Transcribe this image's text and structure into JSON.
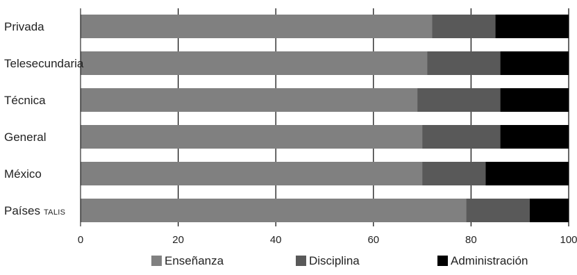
{
  "chart_data": {
    "type": "bar",
    "orientation": "horizontal",
    "stacked": true,
    "categories": [
      {
        "name": "Privada",
        "suffix": ""
      },
      {
        "name": "Telesecundaria",
        "suffix": ""
      },
      {
        "name": "Técnica",
        "suffix": ""
      },
      {
        "name": "General",
        "suffix": ""
      },
      {
        "name": "México",
        "suffix": ""
      },
      {
        "name": "Países",
        "suffix": "TALIS"
      }
    ],
    "series": [
      {
        "name": "Enseñanza",
        "color": "#808080",
        "values": [
          72,
          71,
          69,
          70,
          70,
          79
        ]
      },
      {
        "name": "Disciplina",
        "color": "#595959",
        "values": [
          13,
          15,
          17,
          16,
          13,
          13
        ]
      },
      {
        "name": "Administración",
        "color": "#000000",
        "values": [
          15,
          14,
          14,
          14,
          17,
          8
        ]
      }
    ],
    "xlim": [
      0,
      100
    ],
    "xticks": [
      "0",
      "20",
      "40",
      "60",
      "80",
      "100"
    ],
    "grid": "vertical",
    "legend_position": "bottom"
  }
}
